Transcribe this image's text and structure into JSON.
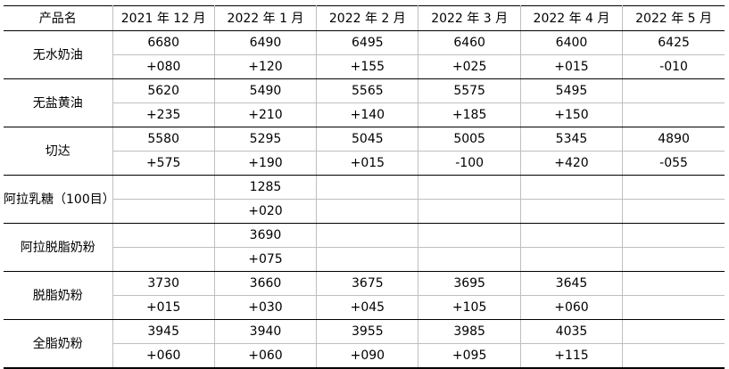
{
  "header": {
    "product_col": "产品名",
    "months": [
      "2021 年 12 月",
      "2022 年 1 月",
      "2022 年 2 月",
      "2022 年 3 月",
      "2022 年 4 月",
      "2022 年 5 月"
    ]
  },
  "rows": [
    {
      "name": "无水奶油",
      "prices": [
        "6680",
        "6490",
        "6495",
        "6460",
        "6400",
        "6425"
      ],
      "changes": [
        "+080",
        "+120",
        "+155",
        "+025",
        "+015",
        "-010"
      ]
    },
    {
      "name": "无盐黄油",
      "prices": [
        "5620",
        "5490",
        "5565",
        "5575",
        "5495",
        ""
      ],
      "changes": [
        "+235",
        "+210",
        "+140",
        "+185",
        "+150",
        ""
      ]
    },
    {
      "name": "切达",
      "prices": [
        "5580",
        "5295",
        "5045",
        "5005",
        "5345",
        "4890"
      ],
      "changes": [
        "+575",
        "+190",
        "+015",
        "-100",
        "+420",
        "-055"
      ]
    },
    {
      "name": "阿拉乳糖（100目）",
      "prices": [
        "",
        "1285",
        "",
        "",
        "",
        ""
      ],
      "changes": [
        "",
        "+020",
        "",
        "",
        "",
        ""
      ]
    },
    {
      "name": "阿拉脱脂奶粉",
      "prices": [
        "",
        "3690",
        "",
        "",
        "",
        ""
      ],
      "changes": [
        "",
        "+075",
        "",
        "",
        "",
        ""
      ]
    },
    {
      "name": "脱脂奶粉",
      "prices": [
        "3730",
        "3660",
        "3675",
        "3695",
        "3645",
        ""
      ],
      "changes": [
        "+015",
        "+030",
        "+045",
        "+105",
        "+060",
        ""
      ]
    },
    {
      "name": "全脂奶粉",
      "prices": [
        "3945",
        "3940",
        "3955",
        "3985",
        "4035",
        ""
      ],
      "changes": [
        "+060",
        "+060",
        "+090",
        "+095",
        "+115",
        ""
      ]
    }
  ]
}
